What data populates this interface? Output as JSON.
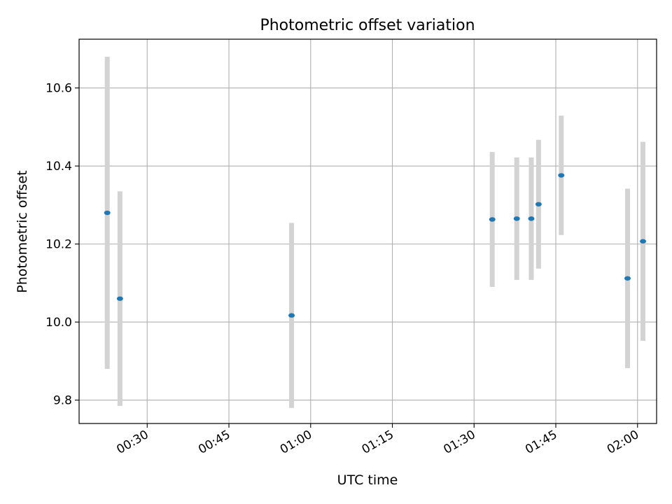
{
  "chart_data": {
    "type": "scatter",
    "title": "Photometric offset variation",
    "xlabel": "UTC time",
    "ylabel": "Photometric offset",
    "x_ticks": [
      "00:30",
      "00:45",
      "01:00",
      "01:15",
      "01:30",
      "01:45",
      "02:00"
    ],
    "y_ticks": [
      "9.8",
      "10.0",
      "10.2",
      "10.4",
      "10.6"
    ],
    "xlim": [
      "00:17:30",
      "02:03:30"
    ],
    "ylim": [
      9.74,
      10.725
    ],
    "grid": true,
    "colors": {
      "point": "#1f77b4",
      "errorbar": "#d3d3d3",
      "grid": "#b0b0b0"
    },
    "series": [
      {
        "points": [
          {
            "x": "00:22:40",
            "y": 10.28,
            "err": 0.4
          },
          {
            "x": "00:25:00",
            "y": 10.06,
            "err": 0.275
          },
          {
            "x": "00:56:30",
            "y": 10.017,
            "err": 0.237
          },
          {
            "x": "01:33:20",
            "y": 10.263,
            "err": 0.173
          },
          {
            "x": "01:37:50",
            "y": 10.265,
            "err": 0.157
          },
          {
            "x": "01:40:30",
            "y": 10.265,
            "err": 0.157
          },
          {
            "x": "01:41:50",
            "y": 10.302,
            "err": 0.165
          },
          {
            "x": "01:46:00",
            "y": 10.376,
            "err": 0.153
          },
          {
            "x": "01:58:10",
            "y": 10.112,
            "err": 0.23
          },
          {
            "x": "02:01:00",
            "y": 10.207,
            "err": 0.255
          }
        ]
      }
    ]
  }
}
